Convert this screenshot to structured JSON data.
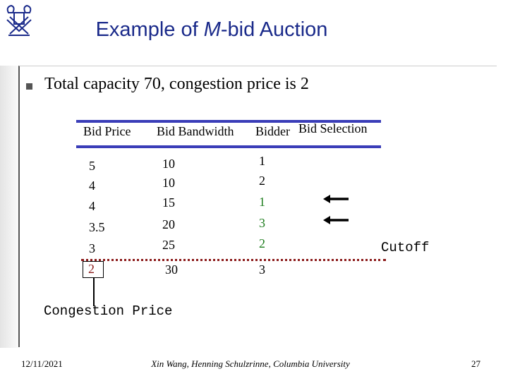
{
  "slide": {
    "title_prefix": "Example of ",
    "title_italic": "M",
    "title_suffix": "-bid Auction",
    "bullet": "Total capacity 70, congestion price is 2"
  },
  "table": {
    "headers": [
      "Bid Price",
      "Bid Bandwidth",
      "Bidder",
      "Bid Selection"
    ],
    "rows": [
      {
        "price": "5",
        "bandwidth": "10",
        "bidder": "1"
      },
      {
        "price": "4",
        "bandwidth": "10",
        "bidder": "2"
      },
      {
        "price": "4",
        "bandwidth": "15",
        "bidder": "1"
      },
      {
        "price": "3.5",
        "bandwidth": "20",
        "bidder": "3"
      },
      {
        "price": "3",
        "bandwidth": "25",
        "bidder": "2"
      },
      {
        "price": "2",
        "bandwidth": "30",
        "bidder": "3"
      }
    ]
  },
  "annotations": {
    "cutoff": "Cutoff",
    "congestion_price": "Congestion Price"
  },
  "footer": {
    "date": "12/11/2021",
    "authors": "Xin Wang, Henning Schulzrinne, Columbia University",
    "page": "27"
  },
  "colors": {
    "title": "#1a2a8a",
    "rule": "#3a3db8",
    "green_text": "#1e7d1e",
    "cutoff_line": "#8b1a1a"
  }
}
